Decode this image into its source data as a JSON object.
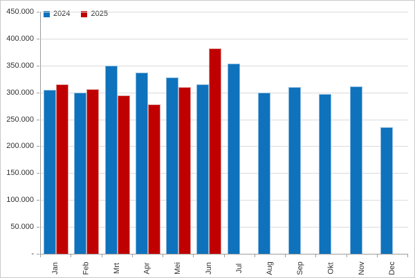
{
  "chart_data": {
    "type": "bar",
    "title": "",
    "xlabel": "",
    "ylabel": "",
    "categories": [
      "Jan",
      "Feb",
      "Mrt",
      "Apr",
      "Mei",
      "Jun",
      "Jul",
      "Aug",
      "Sep",
      "Okt",
      "Nov",
      "Dec"
    ],
    "series": [
      {
        "name": "2024",
        "color": "#0e72bc",
        "border_color": "#8ab9df",
        "values": [
          305000,
          300000,
          350000,
          337000,
          328000,
          315000,
          354000,
          300000,
          310000,
          297000,
          311000,
          235000
        ]
      },
      {
        "name": "2025",
        "color": "#c00000",
        "border_color": "#dc9694",
        "values": [
          315000,
          306000,
          295000,
          278000,
          310000,
          382000,
          null,
          null,
          null,
          null,
          null,
          null
        ]
      }
    ],
    "ylim": [
      0,
      450000
    ],
    "ytick_step": 50000,
    "ytick_labels": [
      "450.000",
      "400.000",
      "350.000",
      "300.000",
      "250.000",
      "200.000",
      "150.000",
      "100.000",
      "50.000",
      "-"
    ],
    "grid": true,
    "legend_position": "top-left",
    "axis_color": "#9b9b9b",
    "gridline_color": "#dadada",
    "label_color": "#303030"
  },
  "legend": {
    "items": [
      {
        "label": "2024",
        "color": "#0e72bc"
      },
      {
        "label": "2025",
        "color": "#c00000"
      }
    ]
  }
}
